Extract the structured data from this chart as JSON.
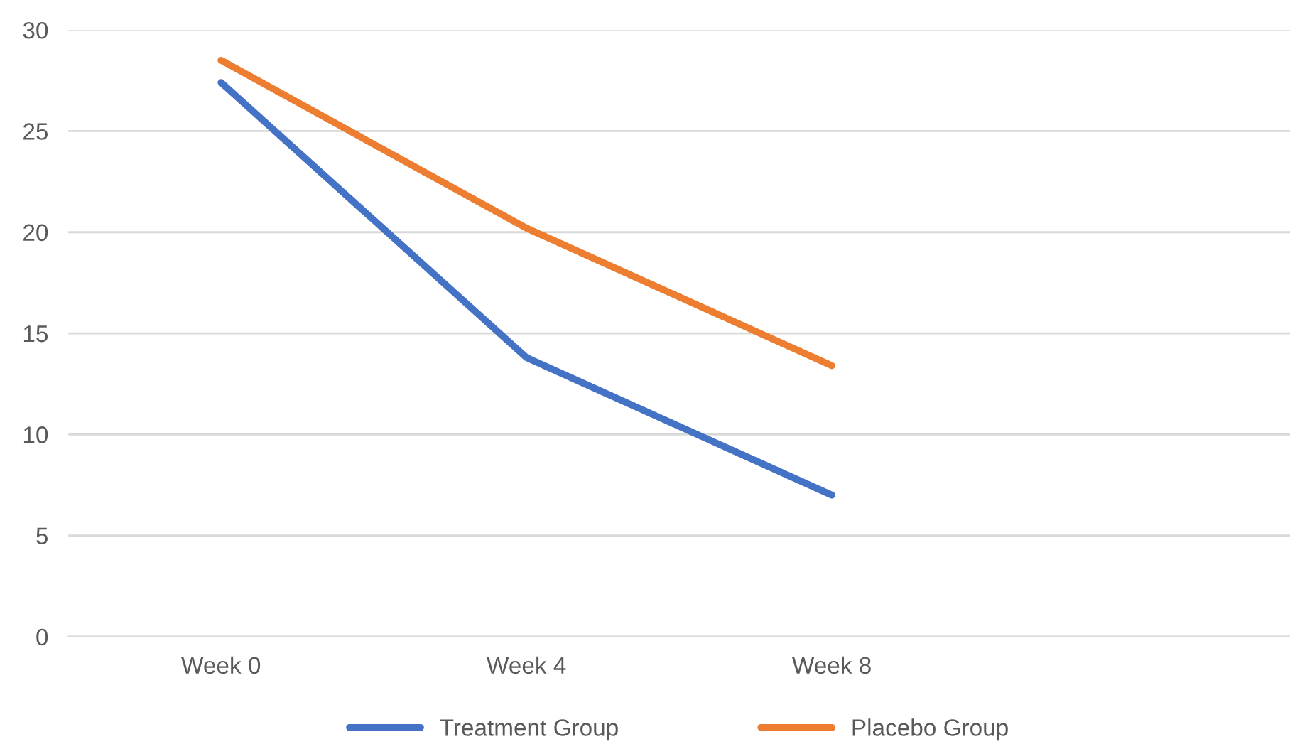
{
  "chart_data": {
    "type": "line",
    "categories": [
      "Week 0",
      "Week 4",
      "Week 8",
      null
    ],
    "series": [
      {
        "name": "Treatment Group",
        "color": "#4472c4",
        "values": [
          27.4,
          13.8,
          7.0,
          null
        ]
      },
      {
        "name": "Placebo Group",
        "color": "#ed7d31",
        "values": [
          28.5,
          20.2,
          13.4,
          null
        ]
      }
    ],
    "ylim": [
      0,
      30
    ],
    "yticks": [
      0,
      5,
      10,
      15,
      20,
      25,
      30
    ],
    "grid": "y",
    "legend": "bottom",
    "marker": "none",
    "line_style": "solid"
  }
}
